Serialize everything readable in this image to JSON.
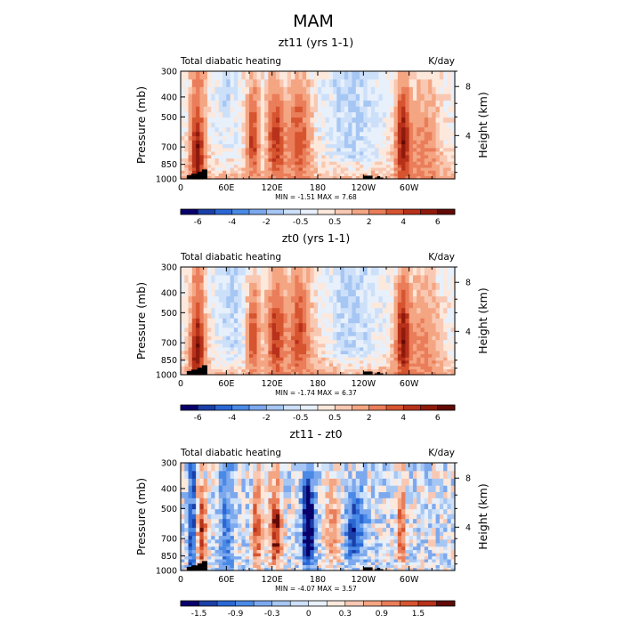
{
  "figure": {
    "title": "MAM"
  },
  "chart_data": [
    {
      "type": "heatmap",
      "title": "zt11 (yrs 1-1)",
      "subtitle_left": "Total diabatic heating",
      "subtitle_right": "K/day",
      "ylabel": "Pressure (mb)",
      "ylabel_right": "Height (km)",
      "x_ticks": [
        "0",
        "60E",
        "120E",
        "180",
        "120W",
        "60W"
      ],
      "y_ticks": [
        "300",
        "400",
        "500",
        "700",
        "850",
        "1000"
      ],
      "y_ticks_right": [
        "8",
        "4"
      ],
      "stats_text": "MIN = -1.51   MAX = 7.68",
      "colorbar": {
        "labels": [
          "-6",
          "-4",
          "-2",
          "-0.5",
          "0.5",
          "2",
          "4",
          "6"
        ],
        "colors": [
          "#08006b",
          "#1a3fa8",
          "#2b67d4",
          "#4a8ae6",
          "#7ca8ee",
          "#a6c6f3",
          "#cde0f9",
          "#e7f0fb",
          "#fde8dc",
          "#f9c8b2",
          "#f4a582",
          "#ea7d5a",
          "#d6542f",
          "#b8311a",
          "#8f1a0c",
          "#620a05"
        ]
      }
    },
    {
      "type": "heatmap",
      "title": "zt0 (yrs 1-1)",
      "subtitle_left": "Total diabatic heating",
      "subtitle_right": "K/day",
      "ylabel": "Pressure (mb)",
      "ylabel_right": "Height (km)",
      "x_ticks": [
        "0",
        "60E",
        "120E",
        "180",
        "120W",
        "60W"
      ],
      "y_ticks": [
        "300",
        "400",
        "500",
        "700",
        "850",
        "1000"
      ],
      "y_ticks_right": [
        "8",
        "4"
      ],
      "stats_text": "MIN = -1.74   MAX = 6.37",
      "colorbar": {
        "labels": [
          "-6",
          "-4",
          "-2",
          "-0.5",
          "0.5",
          "2",
          "4",
          "6"
        ],
        "colors": [
          "#08006b",
          "#1a3fa8",
          "#2b67d4",
          "#4a8ae6",
          "#7ca8ee",
          "#a6c6f3",
          "#cde0f9",
          "#e7f0fb",
          "#fde8dc",
          "#f9c8b2",
          "#f4a582",
          "#ea7d5a",
          "#d6542f",
          "#b8311a",
          "#8f1a0c",
          "#620a05"
        ]
      }
    },
    {
      "type": "heatmap",
      "title": "zt11 - zt0",
      "subtitle_left": "Total diabatic heating",
      "subtitle_right": "K/day",
      "ylabel": "Pressure (mb)",
      "ylabel_right": "Height (km)",
      "x_ticks": [
        "0",
        "60E",
        "120E",
        "180",
        "120W",
        "60W"
      ],
      "y_ticks": [
        "300",
        "400",
        "500",
        "700",
        "850",
        "1000"
      ],
      "y_ticks_right": [
        "8",
        "4"
      ],
      "stats_text": "MIN = -4.07   MAX = 3.57",
      "colorbar": {
        "labels": [
          "-1.5",
          "-0.9",
          "-0.3",
          "0",
          "0.3",
          "0.9",
          "1.5"
        ],
        "colors": [
          "#08006b",
          "#1a3fa8",
          "#2b67d4",
          "#4a8ae6",
          "#7ca8ee",
          "#a6c6f3",
          "#cde0f9",
          "#e7f0fb",
          "#fde8dc",
          "#f9c8b2",
          "#f4a582",
          "#ea7d5a",
          "#d6542f",
          "#b8311a",
          "#620a05"
        ]
      }
    }
  ]
}
